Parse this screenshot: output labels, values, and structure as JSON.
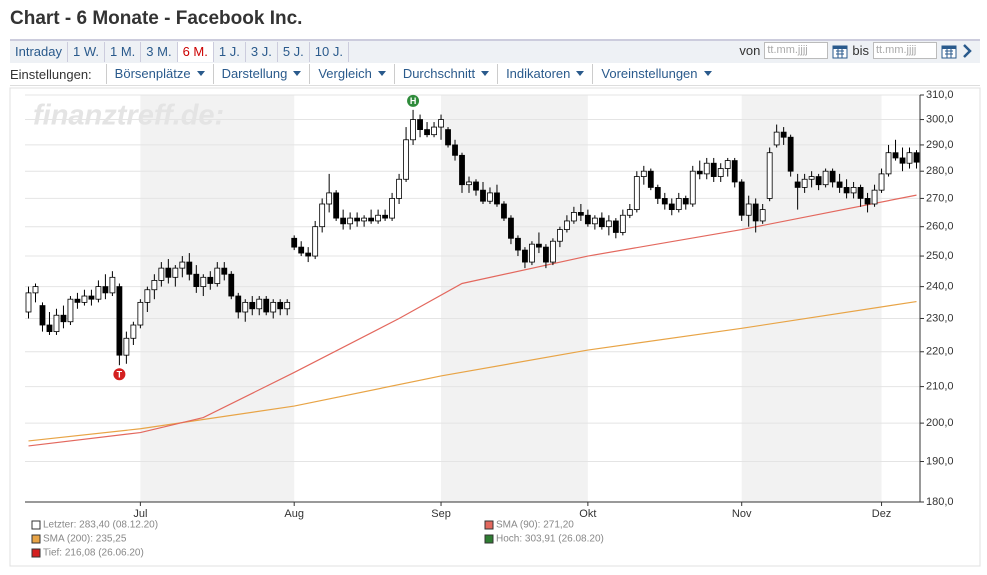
{
  "header": {
    "title": "Chart - 6 Monate - Facebook Inc.",
    "tabs": [
      "Intraday",
      "1 W.",
      "1 M.",
      "3 M.",
      "6 M.",
      "1 J.",
      "3 J.",
      "5 J.",
      "10 J."
    ],
    "active_tab": 4,
    "von": "von",
    "bis": "bis",
    "date_placeholder": "tt.mm.jjjj",
    "settings_label": "Einstellungen:",
    "menus": [
      "Börsenplätze",
      "Darstellung",
      "Vergleich",
      "Durchschnitt",
      "Indikatoren",
      "Voreinstellungen"
    ]
  },
  "chart_data": {
    "type": "candlestick",
    "watermark": "finanztreff.de:",
    "log": true,
    "grid": true,
    "xlim": [
      -0.5,
      127.5
    ],
    "xticks": [
      {
        "value": 16,
        "label": "Jul"
      },
      {
        "value": 38,
        "label": "Aug"
      },
      {
        "value": 59,
        "label": "Sep"
      },
      {
        "value": 80,
        "label": "Okt"
      },
      {
        "value": 102,
        "label": "Nov"
      },
      {
        "value": 122,
        "label": "Dez"
      }
    ],
    "ylim": [
      180,
      310
    ],
    "yticks": [
      {
        "value": 180,
        "label": "180,0"
      },
      {
        "value": 190,
        "label": "190,0"
      },
      {
        "value": 200,
        "label": "200,0"
      },
      {
        "value": 210,
        "label": "210,0"
      },
      {
        "value": 220,
        "label": "220,0"
      },
      {
        "value": 230,
        "label": "230,0"
      },
      {
        "value": 240,
        "label": "240,0"
      },
      {
        "value": 250,
        "label": "250,0"
      },
      {
        "value": 260,
        "label": "260,0"
      },
      {
        "value": 270,
        "label": "270,0"
      },
      {
        "value": 280,
        "label": "280,0"
      },
      {
        "value": 290,
        "label": "290,0"
      },
      {
        "value": 300,
        "label": "300,0"
      },
      {
        "value": 310,
        "label": "310,0"
      }
    ],
    "candles": [
      [
        232,
        240,
        230,
        238
      ],
      [
        238,
        241,
        235,
        240
      ],
      [
        234,
        235,
        226,
        228
      ],
      [
        228,
        232,
        225,
        226
      ],
      [
        226,
        233,
        225,
        231
      ],
      [
        231,
        234,
        227,
        229
      ],
      [
        229,
        237,
        228,
        236
      ],
      [
        236,
        238,
        233,
        235
      ],
      [
        235,
        239,
        234,
        237
      ],
      [
        237,
        239,
        234,
        236
      ],
      [
        236,
        242,
        235,
        240
      ],
      [
        240,
        244,
        236,
        238
      ],
      [
        238,
        245,
        237,
        243
      ],
      [
        240,
        241,
        216.08,
        219
      ],
      [
        219,
        226,
        216.5,
        224
      ],
      [
        224,
        229,
        222,
        228
      ],
      [
        228,
        236,
        227,
        235
      ],
      [
        235,
        240,
        232,
        239
      ],
      [
        239,
        244,
        236,
        242
      ],
      [
        242,
        248,
        240,
        246
      ],
      [
        246,
        249,
        241,
        243
      ],
      [
        243,
        247,
        240,
        246
      ],
      [
        246,
        250,
        243,
        248
      ],
      [
        248,
        251,
        242,
        244
      ],
      [
        244,
        247,
        238,
        240
      ],
      [
        240,
        244,
        237,
        243
      ],
      [
        243,
        245,
        239,
        241
      ],
      [
        241,
        248,
        240,
        246
      ],
      [
        246,
        248,
        242,
        244
      ],
      [
        244,
        245,
        236,
        237
      ],
      [
        237,
        238,
        230,
        232
      ],
      [
        232,
        236,
        229,
        235
      ],
      [
        235,
        237,
        231,
        233
      ],
      [
        233,
        237,
        231,
        236
      ],
      [
        236,
        237,
        231,
        232
      ],
      [
        232,
        236,
        230,
        235
      ],
      [
        235,
        236,
        231,
        233
      ],
      [
        233,
        236,
        231,
        235
      ],
      [
        256,
        257,
        252,
        253
      ],
      [
        253,
        255,
        250,
        251
      ],
      [
        251,
        253,
        248,
        250
      ],
      [
        250,
        262,
        249,
        260
      ],
      [
        260,
        270,
        258,
        268
      ],
      [
        268,
        279,
        265,
        272
      ],
      [
        272,
        273,
        262,
        263
      ],
      [
        263,
        266,
        259,
        261
      ],
      [
        261,
        265,
        259,
        263
      ],
      [
        263,
        265,
        260,
        262
      ],
      [
        262,
        264,
        260,
        263
      ],
      [
        263,
        266,
        261,
        262
      ],
      [
        262,
        266,
        261,
        264
      ],
      [
        264,
        266,
        262,
        263
      ],
      [
        263,
        272,
        262,
        270
      ],
      [
        270,
        279,
        268,
        277
      ],
      [
        277,
        297,
        276,
        292
      ],
      [
        292,
        303.91,
        290,
        300
      ],
      [
        300,
        302,
        293,
        296
      ],
      [
        296,
        299,
        293,
        294
      ],
      [
        294,
        299,
        293,
        297
      ],
      [
        297,
        302,
        292,
        300
      ],
      [
        296,
        297,
        289,
        290
      ],
      [
        290,
        292,
        284,
        286
      ],
      [
        286,
        287,
        272,
        275
      ],
      [
        275,
        278,
        272,
        276
      ],
      [
        276,
        277,
        271,
        273
      ],
      [
        273,
        276,
        268,
        269
      ],
      [
        269,
        274,
        268,
        272
      ],
      [
        272,
        275,
        267,
        268
      ],
      [
        268,
        269,
        262,
        263
      ],
      [
        263,
        264,
        254,
        256
      ],
      [
        256,
        257,
        250,
        252
      ],
      [
        252,
        253,
        246,
        248
      ],
      [
        248,
        255,
        247,
        254
      ],
      [
        254,
        258,
        251,
        253
      ],
      [
        253,
        254,
        246,
        248
      ],
      [
        248,
        256,
        247,
        255
      ],
      [
        255,
        260,
        253,
        259
      ],
      [
        259,
        264,
        258,
        262
      ],
      [
        262,
        267,
        261,
        265
      ],
      [
        265,
        268,
        262,
        264
      ],
      [
        264,
        266,
        260,
        261
      ],
      [
        261,
        264,
        259,
        263
      ],
      [
        263,
        265,
        259,
        260
      ],
      [
        260,
        264,
        257,
        262
      ],
      [
        262,
        263,
        256,
        258
      ],
      [
        258,
        266,
        257,
        264
      ],
      [
        264,
        268,
        263,
        266
      ],
      [
        266,
        280,
        265,
        278
      ],
      [
        278,
        282,
        275,
        280
      ],
      [
        280,
        281,
        273,
        274
      ],
      [
        274,
        275,
        268,
        270
      ],
      [
        270,
        272,
        266,
        268
      ],
      [
        268,
        270,
        264,
        266
      ],
      [
        266,
        272,
        265,
        270
      ],
      [
        270,
        271,
        266,
        268
      ],
      [
        268,
        282,
        267,
        280
      ],
      [
        280,
        284,
        277,
        279
      ],
      [
        279,
        285,
        277,
        283
      ],
      [
        283,
        285,
        276,
        278
      ],
      [
        278,
        283,
        276,
        281
      ],
      [
        281,
        285,
        278,
        284
      ],
      [
        284,
        285,
        274,
        276
      ],
      [
        276,
        277,
        262,
        264
      ],
      [
        264,
        271,
        260,
        268
      ],
      [
        268,
        270,
        258,
        262
      ],
      [
        262,
        268,
        261,
        266
      ],
      [
        270,
        289,
        269,
        287
      ],
      [
        290,
        298,
        289,
        295
      ],
      [
        295,
        297,
        290,
        293
      ],
      [
        293,
        294,
        278,
        280
      ],
      [
        276,
        279,
        266,
        274
      ],
      [
        274,
        279,
        272,
        277
      ],
      [
        277,
        280,
        274,
        278
      ],
      [
        278,
        279,
        273,
        275
      ],
      [
        275,
        281,
        274,
        280
      ],
      [
        280,
        281,
        274,
        276
      ],
      [
        276,
        279,
        272,
        274
      ],
      [
        274,
        277,
        270,
        272
      ],
      [
        272,
        276,
        270,
        274
      ],
      [
        274,
        275,
        267,
        270
      ],
      [
        270,
        272,
        265,
        268
      ],
      [
        268,
        275,
        267,
        273
      ],
      [
        273,
        281,
        272,
        279
      ],
      [
        279,
        290,
        278,
        287
      ],
      [
        287,
        292,
        284,
        285
      ],
      [
        285,
        289,
        280,
        283
      ],
      [
        283,
        289,
        281,
        287
      ],
      [
        287,
        288,
        281,
        283.4
      ]
    ],
    "series": [
      {
        "color": "#e8a446",
        "x": [
          0,
          16,
          38,
          59,
          80,
          102,
          127
        ],
        "values": [
          195.3,
          198.5,
          204.6,
          213,
          220.5,
          227,
          235.25
        ]
      },
      {
        "color": "#e3685e",
        "x": [
          0,
          16,
          25,
          38,
          53,
          62,
          80,
          102,
          127
        ],
        "values": [
          194,
          197.5,
          201.5,
          214,
          230,
          241,
          250,
          259,
          271.2
        ]
      }
    ],
    "annotations": [
      {
        "label": "H",
        "x": 55,
        "y": 303.91,
        "color": "#2e8b3a"
      },
      {
        "label": "T",
        "x": 13,
        "y": 216.08,
        "color": "#d42020"
      }
    ],
    "legend": [
      {
        "label": "Letzter: 283,40 (08.12.20)",
        "color": "#ffffff"
      },
      {
        "label": "SMA (90): 271,20",
        "color": "#e3685e"
      },
      {
        "label": "SMA (200): 235,25",
        "color": "#e8a446"
      },
      {
        "label": "Hoch: 303,91 (26.08.20)",
        "color": "#2e7d32"
      },
      {
        "label": "Tief: 216,08 (26.06.20)",
        "color": "#d42020"
      }
    ]
  }
}
